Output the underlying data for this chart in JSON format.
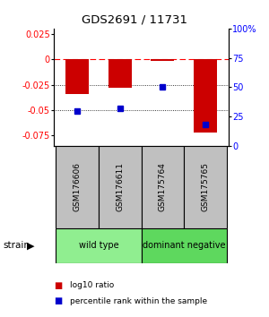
{
  "title": "GDS2691 / 11731",
  "samples": [
    "GSM176606",
    "GSM176611",
    "GSM175764",
    "GSM175765"
  ],
  "log10_ratio": [
    -0.034,
    -0.028,
    -0.002,
    -0.072
  ],
  "percentile_rank_pct": [
    30,
    32,
    50,
    18
  ],
  "groups": [
    {
      "label": "wild type",
      "indices": [
        0,
        1
      ],
      "color": "#90EE90"
    },
    {
      "label": "dominant negative",
      "indices": [
        2,
        3
      ],
      "color": "#5ED85E"
    }
  ],
  "strain_label": "strain",
  "ylim_left": [
    -0.085,
    0.03
  ],
  "ylim_right": [
    0,
    100
  ],
  "yticks_left": [
    0.025,
    0,
    -0.025,
    -0.05,
    -0.075
  ],
  "yticks_right": [
    100,
    75,
    50,
    25,
    0
  ],
  "bar_color": "#CC0000",
  "dot_color": "#0000CC",
  "hline_y": 0,
  "dotted_lines": [
    -0.025,
    -0.05
  ],
  "background_color": "#ffffff",
  "bar_width": 0.55,
  "sample_box_color": "#C0C0C0"
}
